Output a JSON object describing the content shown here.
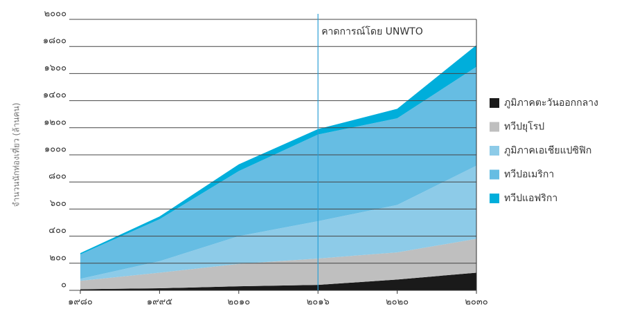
{
  "chart_data": {
    "type": "stacked_area",
    "y_label": "จำนวนนักท่องเที่ยว (ล้านคน)",
    "annotation": {
      "text": "คาดการณ์โดย UNWTO",
      "x": "๒๐๑๖"
    },
    "categories": [
      "๑๙๘๐",
      "๑๙๙๕",
      "๒๐๑๐",
      "๒๐๑๖",
      "๒๐๒๐",
      "๒๐๓๐"
    ],
    "series": [
      {
        "name": "ภูมิภาคตะวันออกกลาง",
        "color": "#1a1a1a",
        "values": [
          8,
          15,
          30,
          40,
          80,
          130
        ]
      },
      {
        "name": "ทวีปยุโรป",
        "color": "#bfbfbf",
        "values": [
          62,
          115,
          165,
          195,
          200,
          250
        ]
      },
      {
        "name": "ภูมิภาคเอเชียแปซิฟิก",
        "color": "#8dcbe8",
        "values": [
          15,
          85,
          205,
          275,
          350,
          540
        ]
      },
      {
        "name": "ทวีปอเมริกา",
        "color": "#66bde3",
        "values": [
          180,
          310,
          480,
          640,
          640,
          730
        ]
      },
      {
        "name": "ทวีปแอฟริกา",
        "color": "#00aedb",
        "values": [
          10,
          20,
          50,
          40,
          70,
          160
        ]
      }
    ],
    "ylim": [
      0,
      2000
    ],
    "yticks": [
      {
        "value": 0,
        "label": "๐"
      },
      {
        "value": 200,
        "label": "๒๐๐"
      },
      {
        "value": 400,
        "label": "๔๐๐"
      },
      {
        "value": 600,
        "label": "๖๐๐"
      },
      {
        "value": 800,
        "label": "๘๐๐"
      },
      {
        "value": 1000,
        "label": "๑๐๐๐"
      },
      {
        "value": 1200,
        "label": "๑๒๐๐"
      },
      {
        "value": 1400,
        "label": "๑๔๐๐"
      },
      {
        "value": 1600,
        "label": "๑๖๐๐"
      },
      {
        "value": 1800,
        "label": "๑๘๐๐"
      },
      {
        "value": 2000,
        "label": "๒๐๐๐"
      }
    ],
    "grid": true
  }
}
